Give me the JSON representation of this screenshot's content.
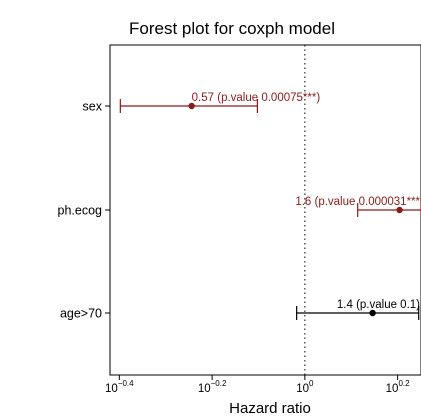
{
  "chart_data": {
    "type": "forest",
    "title": "Forest plot for coxph model",
    "xlabel": "Hazard ratio",
    "ylabel": "",
    "x_scale": "log10",
    "xlim": [
      0.38,
      1.78
    ],
    "x_ticks": [
      {
        "value": 0.398,
        "base": "10",
        "exp": "−0.4"
      },
      {
        "value": 0.631,
        "base": "10",
        "exp": "−0.2"
      },
      {
        "value": 1.0,
        "base": "10",
        "exp": "0"
      },
      {
        "value": 1.585,
        "base": "10",
        "exp": "0.2"
      }
    ],
    "reference_line": 1,
    "grid": false,
    "categories": [
      "sex",
      "ph.ecog",
      "age>70"
    ],
    "points": [
      {
        "label": "sex",
        "hr": 0.57,
        "lower": 0.4,
        "upper": 0.79,
        "annotation": "0.57 (p.value 0.00075***)",
        "color": "#8b1a1a"
      },
      {
        "label": "ph.ecog",
        "hr": 1.6,
        "lower": 1.3,
        "upper": 1.78,
        "annotation": "1.6 (p.value 0.000031***",
        "color": "#8b1a1a"
      },
      {
        "label": "age>70",
        "hr": 1.4,
        "lower": 0.96,
        "upper": 1.76,
        "annotation": "1.4 (p.value 0.1)",
        "color": "#000000"
      }
    ]
  }
}
